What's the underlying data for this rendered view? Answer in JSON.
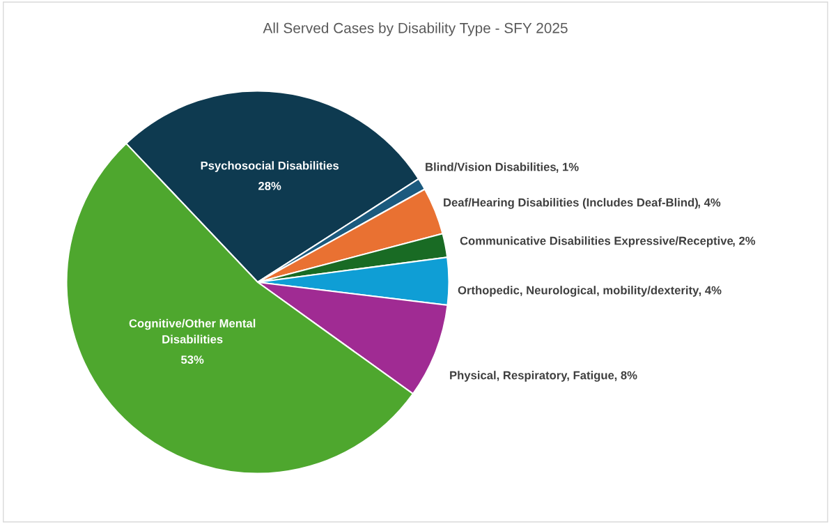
{
  "chart_data": {
    "type": "pie",
    "title": "All Served Cases by Disability Type - SFY 2025",
    "categories": [
      "Psychosocial Disabilities",
      "Blind/Vision Disabilities",
      "Deaf/Hearing Disabilities (Includes Deaf-Blind)",
      "Communicative Disabilities Expressive/Receptive",
      "Orthopedic, Neurological, mobility/dexterity",
      "Physical, Respiratory, Fatigue",
      "Cognitive/Other Mental Disabilities"
    ],
    "values": [
      28,
      1,
      4,
      2,
      4,
      8,
      53
    ],
    "colors": [
      "#0e3a50",
      "#1b5a7e",
      "#e97132",
      "#196b24",
      "#0f9ed5",
      "#a02b93",
      "#4ea72e"
    ],
    "value_labels": [
      "28%",
      ", 1%",
      ", 4%",
      ", 2%",
      ", 4%",
      ", 8%",
      "53%"
    ]
  }
}
